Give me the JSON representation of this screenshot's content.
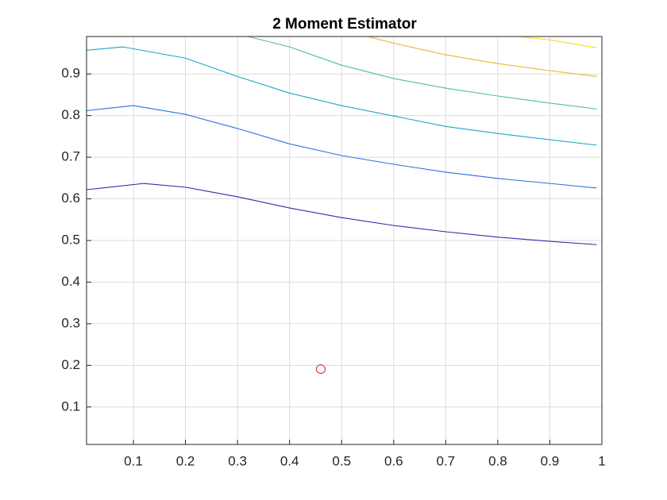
{
  "chart_data": {
    "type": "line",
    "title": "2 Moment Estimator",
    "xlim": [
      0.01,
      1
    ],
    "ylim": [
      0.01,
      0.99
    ],
    "xticks": [
      0.1,
      0.2,
      0.3,
      0.4,
      0.5,
      0.6,
      0.7,
      0.8,
      0.9,
      1
    ],
    "yticks": [
      0.1,
      0.2,
      0.3,
      0.4,
      0.5,
      0.6,
      0.7,
      0.8,
      0.9
    ],
    "grid": true,
    "series": [
      {
        "color": "#3e26a8",
        "x": [
          0.01,
          0.12,
          0.2,
          0.3,
          0.4,
          0.5,
          0.6,
          0.7,
          0.8,
          0.9,
          0.99
        ],
        "values": [
          0.622,
          0.637,
          0.628,
          0.605,
          0.578,
          0.555,
          0.536,
          0.521,
          0.508,
          0.498,
          0.49
        ]
      },
      {
        "color": "#2f6fe0",
        "x": [
          0.01,
          0.1,
          0.2,
          0.3,
          0.4,
          0.5,
          0.6,
          0.7,
          0.8,
          0.9,
          0.99
        ],
        "values": [
          0.812,
          0.824,
          0.803,
          0.769,
          0.732,
          0.704,
          0.683,
          0.664,
          0.649,
          0.637,
          0.626
        ]
      },
      {
        "color": "#1fa5c8",
        "x": [
          0.01,
          0.08,
          0.2,
          0.3,
          0.4,
          0.5,
          0.6,
          0.7,
          0.8,
          0.9,
          0.99
        ],
        "values": [
          0.957,
          0.965,
          0.938,
          0.894,
          0.854,
          0.824,
          0.799,
          0.774,
          0.757,
          0.742,
          0.729
        ]
      },
      {
        "color": "#4cc38a",
        "x": [
          0.32,
          0.4,
          0.5,
          0.6,
          0.7,
          0.8,
          0.9,
          0.99
        ],
        "values": [
          0.99,
          0.965,
          0.921,
          0.889,
          0.866,
          0.847,
          0.83,
          0.816
        ]
      },
      {
        "color": "#e8b530",
        "x": [
          0.55,
          0.6,
          0.7,
          0.8,
          0.9,
          0.99
        ],
        "values": [
          0.99,
          0.974,
          0.946,
          0.925,
          0.908,
          0.894
        ]
      },
      {
        "color": "#f0e020",
        "x": [
          0.84,
          0.9,
          0.99
        ],
        "values": [
          0.99,
          0.982,
          0.963
        ]
      },
      {
        "color": "#d62020",
        "marker": "o",
        "x": [
          0.46
        ],
        "values": [
          0.191
        ]
      }
    ]
  }
}
